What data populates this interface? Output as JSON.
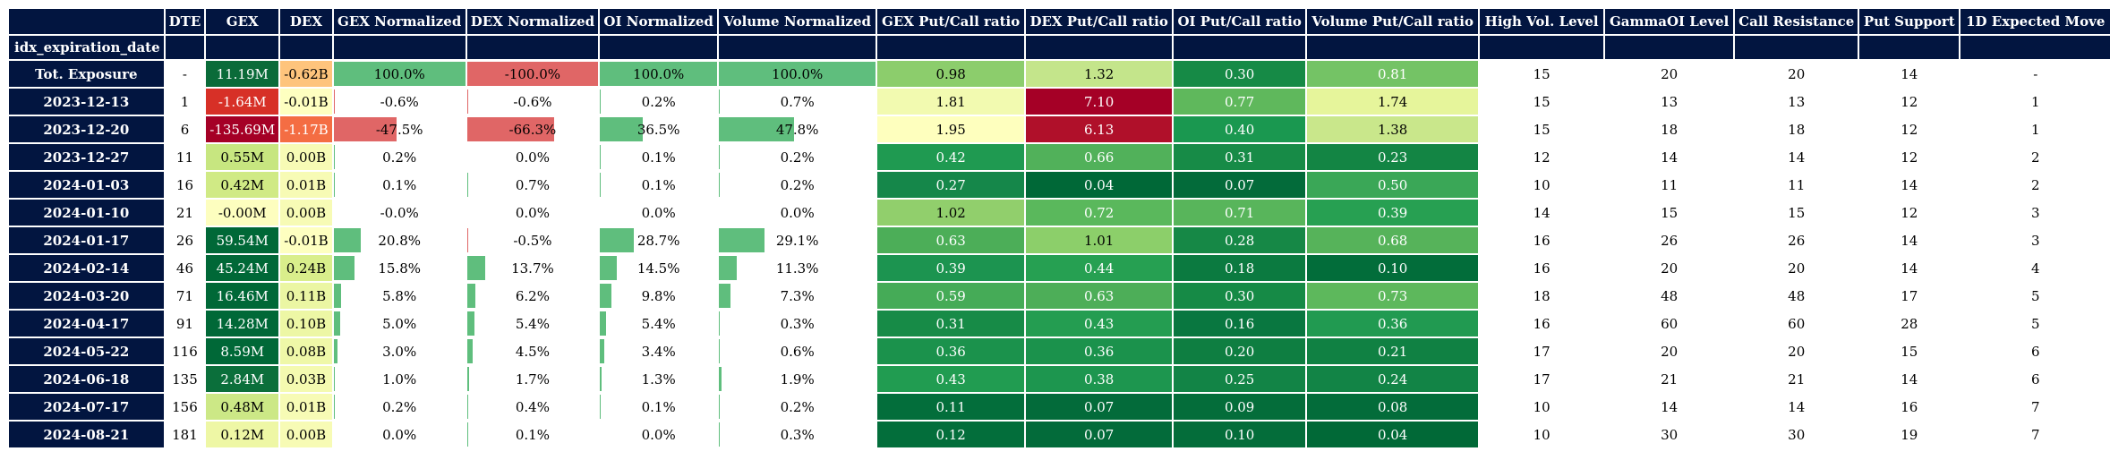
{
  "columns": [
    "DTE",
    "GEX",
    "DEX",
    "GEX Normalized",
    "DEX Normalized",
    "OI Normalized",
    "Volume Normalized",
    "GEX Put/Call ratio",
    "DEX Put/Call ratio",
    "OI Put/Call ratio",
    "Volume Put/Call ratio",
    "High Vol. Level",
    "GammaOI Level",
    "Call Resistance",
    "Put Support",
    "1D Expected Move"
  ],
  "index_name": "idx_expiration_date",
  "colors": {
    "header_bg": "#021540",
    "bar_positive": "#5fbe7d",
    "bar_negative": "#e06666"
  },
  "rows": [
    {
      "date": "Tot. Exposure",
      "dte": "-",
      "gex": "11.19M",
      "gex_bg": "#0a6b39",
      "gex_fg": "#ffffff",
      "dex": "-0.62B",
      "dex_bg": "#fec47c",
      "dex_fg": "#000000",
      "gexn": "100.0%",
      "gexn_v": 100.0,
      "dexn": "-100.0%",
      "dexn_v": -100.0,
      "oin": "100.0%",
      "oin_v": 100.0,
      "voln": "100.0%",
      "voln_v": 100.0,
      "gexr": "0.98",
      "gexr_bg": "#8ccd6c",
      "gexr_fg": "#000000",
      "dexr": "1.32",
      "dexr_bg": "#c4e58b",
      "dexr_fg": "#000000",
      "oir": "0.30",
      "oir_bg": "#168a46",
      "oir_fg": "#ffffff",
      "volr": "0.81",
      "volr_bg": "#74c365",
      "volr_fg": "#ffffff",
      "hv": "15",
      "goi": "20",
      "cr": "20",
      "ps": "14",
      "em": "-"
    },
    {
      "date": "2023-12-13",
      "dte": "1",
      "gex": "-1.64M",
      "gex_bg": "#d73027",
      "gex_fg": "#ffffff",
      "dex": "-0.01B",
      "dex_bg": "#feffc0",
      "dex_fg": "#000000",
      "gexn": "-0.6%",
      "gexn_v": -0.6,
      "dexn": "-0.6%",
      "dexn_v": -0.6,
      "oin": "0.2%",
      "oin_v": 0.2,
      "voln": "0.7%",
      "voln_v": 0.7,
      "gexr": "1.81",
      "gexr_bg": "#f2fab0",
      "gexr_fg": "#000000",
      "dexr": "7.10",
      "dexr_bg": "#a50026",
      "dexr_fg": "#ffffff",
      "oir": "0.77",
      "oir_bg": "#5fb85c",
      "oir_fg": "#ffffff",
      "volr": "1.74",
      "volr_bg": "#e6f59b",
      "volr_fg": "#000000",
      "hv": "15",
      "goi": "13",
      "cr": "13",
      "ps": "12",
      "em": "1"
    },
    {
      "date": "2023-12-20",
      "dte": "6",
      "gex": "-135.69M",
      "gex_bg": "#a50026",
      "gex_fg": "#ffffff",
      "dex": "-1.17B",
      "dex_bg": "#f46d43",
      "dex_fg": "#ffffff",
      "gexn": "-47.5%",
      "gexn_v": -47.5,
      "dexn": "-66.3%",
      "dexn_v": -66.3,
      "oin": "36.5%",
      "oin_v": 36.5,
      "voln": "47.8%",
      "voln_v": 47.8,
      "gexr": "1.95",
      "gexr_bg": "#feffbe",
      "gexr_fg": "#000000",
      "dexr": "6.13",
      "dexr_bg": "#b0102a",
      "dexr_fg": "#ffffff",
      "oir": "0.40",
      "oir_bg": "#1a9850",
      "oir_fg": "#ffffff",
      "volr": "1.38",
      "volr_bg": "#c9e78b",
      "volr_fg": "#000000",
      "hv": "15",
      "goi": "18",
      "cr": "18",
      "ps": "12",
      "em": "1"
    },
    {
      "date": "2023-12-27",
      "dte": "11",
      "gex": "0.55M",
      "gex_bg": "#c7e680",
      "gex_fg": "#000000",
      "dex": "0.00B",
      "dex_bg": "#f7fbb5",
      "dex_fg": "#000000",
      "gexn": "0.2%",
      "gexn_v": 0.2,
      "dexn": "0.0%",
      "dexn_v": 0.0,
      "oin": "0.1%",
      "oin_v": 0.1,
      "voln": "0.2%",
      "voln_v": 0.2,
      "gexr": "0.42",
      "gexr_bg": "#1f9a51",
      "gexr_fg": "#ffffff",
      "dexr": "0.66",
      "dexr_bg": "#51b15a",
      "dexr_fg": "#ffffff",
      "oir": "0.31",
      "oir_bg": "#178b47",
      "oir_fg": "#ffffff",
      "volr": "0.23",
      "volr_bg": "#138544",
      "volr_fg": "#ffffff",
      "hv": "12",
      "goi": "14",
      "cr": "14",
      "ps": "12",
      "em": "2"
    },
    {
      "date": "2024-01-03",
      "dte": "16",
      "gex": "0.42M",
      "gex_bg": "#d0ea85",
      "gex_fg": "#000000",
      "dex": "0.01B",
      "dex_bg": "#f7fbb5",
      "dex_fg": "#000000",
      "gexn": "0.1%",
      "gexn_v": 0.1,
      "dexn": "0.7%",
      "dexn_v": 0.7,
      "oin": "0.1%",
      "oin_v": 0.1,
      "voln": "0.2%",
      "voln_v": 0.2,
      "gexr": "0.27",
      "gexr_bg": "#15874a",
      "gexr_fg": "#ffffff",
      "dexr": "0.04",
      "dexr_bg": "#006837",
      "dexr_fg": "#ffffff",
      "oir": "0.07",
      "oir_bg": "#036b3a",
      "oir_fg": "#ffffff",
      "volr": "0.50",
      "volr_bg": "#3aa757",
      "volr_fg": "#ffffff",
      "hv": "10",
      "goi": "11",
      "cr": "11",
      "ps": "14",
      "em": "2"
    },
    {
      "date": "2024-01-10",
      "dte": "21",
      "gex": "-0.00M",
      "gex_bg": "#fdfebf",
      "gex_fg": "#000000",
      "dex": "0.00B",
      "dex_bg": "#f7fbb5",
      "dex_fg": "#000000",
      "gexn": "-0.0%",
      "gexn_v": 0.0,
      "dexn": "0.0%",
      "dexn_v": 0.0,
      "oin": "0.0%",
      "oin_v": 0.0,
      "voln": "0.0%",
      "voln_v": 0.0,
      "gexr": "1.02",
      "gexr_bg": "#91cf6c",
      "gexr_fg": "#000000",
      "dexr": "0.72",
      "dexr_bg": "#5ab85c",
      "dexr_fg": "#ffffff",
      "oir": "0.71",
      "oir_bg": "#58b55b",
      "oir_fg": "#ffffff",
      "volr": "0.39",
      "volr_bg": "#27a052",
      "volr_fg": "#ffffff",
      "hv": "14",
      "goi": "15",
      "cr": "15",
      "ps": "12",
      "em": "3"
    },
    {
      "date": "2024-01-17",
      "dte": "26",
      "gex": "59.54M",
      "gex_bg": "#006837",
      "gex_fg": "#ffffff",
      "dex": "-0.01B",
      "dex_bg": "#feffc0",
      "dex_fg": "#000000",
      "gexn": "20.8%",
      "gexn_v": 20.8,
      "dexn": "-0.5%",
      "dexn_v": -0.5,
      "oin": "28.7%",
      "oin_v": 28.7,
      "voln": "29.1%",
      "voln_v": 29.1,
      "gexr": "0.63",
      "gexr_bg": "#4cae58",
      "gexr_fg": "#ffffff",
      "dexr": "1.01",
      "dexr_bg": "#8ccf6a",
      "dexr_fg": "#000000",
      "oir": "0.28",
      "oir_bg": "#168846",
      "oir_fg": "#ffffff",
      "volr": "0.68",
      "volr_bg": "#56b35a",
      "volr_fg": "#ffffff",
      "hv": "16",
      "goi": "26",
      "cr": "26",
      "ps": "14",
      "em": "3"
    },
    {
      "date": "2024-02-14",
      "dte": "46",
      "gex": "45.24M",
      "gex_bg": "#006837",
      "gex_fg": "#ffffff",
      "dex": "0.24B",
      "dex_bg": "#d9ee8b",
      "dex_fg": "#000000",
      "gexn": "15.8%",
      "gexn_v": 15.8,
      "dexn": "13.7%",
      "dexn_v": 13.7,
      "oin": "14.5%",
      "oin_v": 14.5,
      "voln": "11.3%",
      "voln_v": 11.3,
      "gexr": "0.39",
      "gexr_bg": "#1c9450",
      "gexr_fg": "#ffffff",
      "dexr": "0.44",
      "dexr_bg": "#26a052",
      "dexr_fg": "#ffffff",
      "oir": "0.18",
      "oir_bg": "#0b7a40",
      "oir_fg": "#ffffff",
      "volr": "0.10",
      "volr_bg": "#026d3a",
      "volr_fg": "#ffffff",
      "hv": "16",
      "goi": "20",
      "cr": "20",
      "ps": "14",
      "em": "4"
    },
    {
      "date": "2024-03-20",
      "dte": "71",
      "gex": "16.46M",
      "gex_bg": "#006837",
      "gex_fg": "#ffffff",
      "dex": "0.11B",
      "dex_bg": "#ebf6a3",
      "dex_fg": "#000000",
      "gexn": "5.8%",
      "gexn_v": 5.8,
      "dexn": "6.2%",
      "dexn_v": 6.2,
      "oin": "9.8%",
      "oin_v": 9.8,
      "voln": "7.3%",
      "voln_v": 7.3,
      "gexr": "0.59",
      "gexr_bg": "#45ab57",
      "gexr_fg": "#ffffff",
      "dexr": "0.63",
      "dexr_bg": "#4dae58",
      "dexr_fg": "#ffffff",
      "oir": "0.30",
      "oir_bg": "#168a46",
      "oir_fg": "#ffffff",
      "volr": "0.73",
      "volr_bg": "#5db85c",
      "volr_fg": "#ffffff",
      "hv": "18",
      "goi": "48",
      "cr": "48",
      "ps": "17",
      "em": "5"
    },
    {
      "date": "2024-04-17",
      "dte": "91",
      "gex": "14.28M",
      "gex_bg": "#006837",
      "gex_fg": "#ffffff",
      "dex": "0.10B",
      "dex_bg": "#edf7a5",
      "dex_fg": "#000000",
      "gexn": "5.0%",
      "gexn_v": 5.0,
      "dexn": "5.4%",
      "dexn_v": 5.4,
      "oin": "5.4%",
      "oin_v": 5.4,
      "voln": "0.3%",
      "voln_v": 0.3,
      "gexr": "0.31",
      "gexr_bg": "#178b47",
      "gexr_fg": "#ffffff",
      "dexr": "0.43",
      "dexr_bg": "#249d51",
      "dexr_fg": "#ffffff",
      "oir": "0.16",
      "oir_bg": "#097740",
      "oir_fg": "#ffffff",
      "volr": "0.36",
      "volr_bg": "#219a51",
      "volr_fg": "#ffffff",
      "hv": "16",
      "goi": "60",
      "cr": "60",
      "ps": "28",
      "em": "5"
    },
    {
      "date": "2024-05-22",
      "dte": "116",
      "gex": "8.59M",
      "gex_bg": "#006837",
      "gex_fg": "#ffffff",
      "dex": "0.08B",
      "dex_bg": "#eff8a8",
      "dex_fg": "#000000",
      "gexn": "3.0%",
      "gexn_v": 3.0,
      "dexn": "4.5%",
      "dexn_v": 4.5,
      "oin": "3.4%",
      "oin_v": 3.4,
      "voln": "0.6%",
      "voln_v": 0.6,
      "gexr": "0.36",
      "gexr_bg": "#1b924c",
      "gexr_fg": "#ffffff",
      "dexr": "0.36",
      "dexr_bg": "#1b924c",
      "dexr_fg": "#ffffff",
      "oir": "0.20",
      "oir_bg": "#0e7e41",
      "oir_fg": "#ffffff",
      "volr": "0.21",
      "volr_bg": "#108143",
      "volr_fg": "#ffffff",
      "hv": "17",
      "goi": "20",
      "cr": "20",
      "ps": "15",
      "em": "6"
    },
    {
      "date": "2024-06-18",
      "dte": "135",
      "gex": "2.84M",
      "gex_bg": "#0b6f3b",
      "gex_fg": "#ffffff",
      "dex": "0.03B",
      "dex_bg": "#f4fab0",
      "dex_fg": "#000000",
      "gexn": "1.0%",
      "gexn_v": 1.0,
      "dexn": "1.7%",
      "dexn_v": 1.7,
      "oin": "1.3%",
      "oin_v": 1.3,
      "voln": "1.9%",
      "voln_v": 1.9,
      "gexr": "0.43",
      "gexr_bg": "#219c51",
      "gexr_fg": "#ffffff",
      "dexr": "0.38",
      "dexr_bg": "#1d964f",
      "dexr_fg": "#ffffff",
      "oir": "0.25",
      "oir_bg": "#128446",
      "oir_fg": "#ffffff",
      "volr": "0.24",
      "volr_bg": "#128446",
      "volr_fg": "#ffffff",
      "hv": "17",
      "goi": "21",
      "cr": "21",
      "ps": "14",
      "em": "6"
    },
    {
      "date": "2024-07-17",
      "dte": "156",
      "gex": "0.48M",
      "gex_bg": "#cce886",
      "gex_fg": "#000000",
      "dex": "0.01B",
      "dex_bg": "#f7fbb5",
      "dex_fg": "#000000",
      "gexn": "0.2%",
      "gexn_v": 0.2,
      "dexn": "0.4%",
      "dexn_v": 0.4,
      "oin": "0.1%",
      "oin_v": 0.1,
      "voln": "0.2%",
      "voln_v": 0.2,
      "gexr": "0.11",
      "gexr_bg": "#036e3b",
      "gexr_fg": "#ffffff",
      "dexr": "0.07",
      "dexr_bg": "#036b3a",
      "dexr_fg": "#ffffff",
      "oir": "0.09",
      "oir_bg": "#046d3a",
      "oir_fg": "#ffffff",
      "volr": "0.08",
      "volr_bg": "#036c3a",
      "volr_fg": "#ffffff",
      "hv": "10",
      "goi": "14",
      "cr": "14",
      "ps": "16",
      "em": "7"
    },
    {
      "date": "2024-08-21",
      "dte": "181",
      "gex": "0.12M",
      "gex_bg": "#eef7a5",
      "gex_fg": "#000000",
      "dex": "0.00B",
      "dex_bg": "#f7fbb5",
      "dex_fg": "#000000",
      "gexn": "0.0%",
      "gexn_v": 0.0,
      "dexn": "0.1%",
      "dexn_v": 0.1,
      "oin": "0.0%",
      "oin_v": 0.0,
      "voln": "0.3%",
      "voln_v": 0.3,
      "gexr": "0.12",
      "gexr_bg": "#036e3b",
      "gexr_fg": "#ffffff",
      "dexr": "0.07",
      "dexr_bg": "#036b3a",
      "dexr_fg": "#ffffff",
      "oir": "0.10",
      "oir_bg": "#046d3a",
      "oir_fg": "#ffffff",
      "volr": "0.04",
      "volr_bg": "#016937",
      "volr_fg": "#ffffff",
      "hv": "10",
      "goi": "30",
      "cr": "30",
      "ps": "19",
      "em": "7"
    }
  ]
}
